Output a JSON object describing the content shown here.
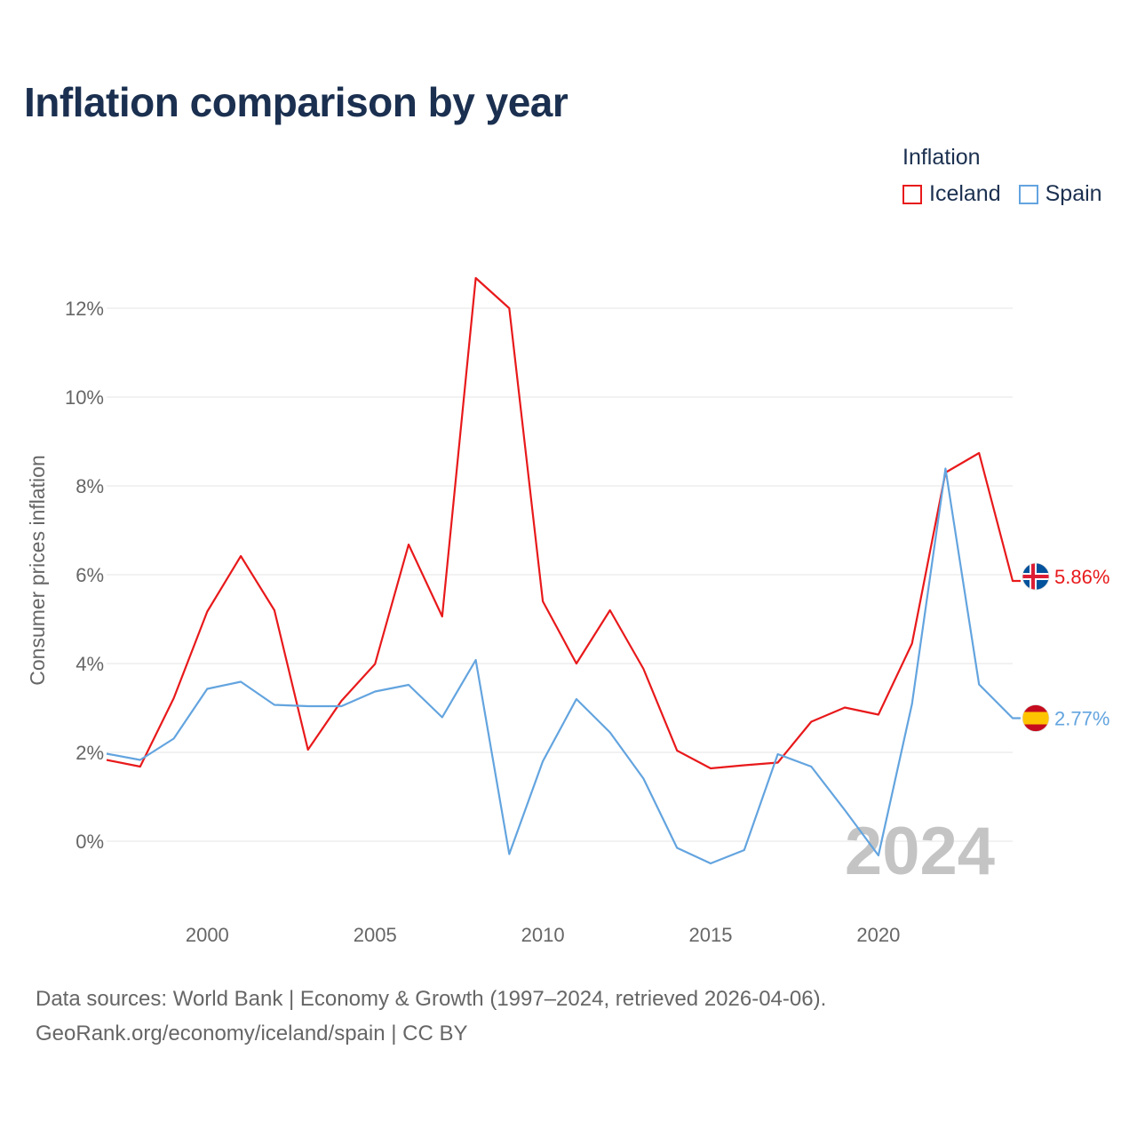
{
  "title": "Inflation comparison by year",
  "legend": {
    "title": "Inflation",
    "items": [
      {
        "name": "Iceland",
        "color": "#e8191b"
      },
      {
        "name": "Spain",
        "color": "#63a4df"
      }
    ]
  },
  "chart_data": {
    "type": "line",
    "title": "Inflation comparison by year",
    "xlabel": "",
    "ylabel": "Consumer prices inflation",
    "x": [
      1997,
      1998,
      1999,
      2000,
      2001,
      2002,
      2003,
      2004,
      2005,
      2006,
      2007,
      2008,
      2009,
      2010,
      2011,
      2012,
      2013,
      2014,
      2015,
      2016,
      2017,
      2018,
      2019,
      2020,
      2021,
      2022,
      2023,
      2024
    ],
    "xlim": [
      1997,
      2024
    ],
    "ylim": [
      -2,
      13.5
    ],
    "yticks": [
      0,
      2,
      4,
      6,
      8,
      10,
      12
    ],
    "ytick_labels": [
      "0%",
      "2%",
      "4%",
      "6%",
      "8%",
      "10%",
      "12%"
    ],
    "xticks": [
      2000,
      2005,
      2010,
      2015,
      2020
    ],
    "xtick_labels": [
      "2000",
      "2005",
      "2010",
      "2015",
      "2020"
    ],
    "grid": true,
    "legend_position": "top-right",
    "current_year_label": "2024",
    "series": [
      {
        "name": "Iceland",
        "color": "#e8191b",
        "values": [
          1.83,
          1.68,
          3.22,
          5.17,
          6.42,
          5.2,
          2.06,
          3.16,
          3.99,
          6.68,
          5.06,
          12.68,
          12.0,
          5.4,
          4.0,
          5.2,
          3.88,
          2.04,
          1.64,
          1.71,
          1.77,
          2.69,
          3.01,
          2.85,
          4.45,
          8.3,
          8.74,
          5.86
        ],
        "end_label": "5.86%",
        "flag": "iceland-flag"
      },
      {
        "name": "Spain",
        "color": "#63a4df",
        "values": [
          1.97,
          1.83,
          2.31,
          3.43,
          3.59,
          3.07,
          3.04,
          3.04,
          3.37,
          3.52,
          2.79,
          4.08,
          -0.29,
          1.8,
          3.2,
          2.45,
          1.41,
          -0.15,
          -0.5,
          -0.2,
          1.96,
          1.68,
          0.7,
          -0.32,
          3.09,
          8.39,
          3.53,
          2.77
        ],
        "end_label": "2.77%",
        "flag": "spain-flag"
      }
    ]
  },
  "footer": {
    "line1": "Data sources: World Bank | Economy & Growth (1997–2024, retrieved 2026-04-06).",
    "line2": "GeoRank.org/economy/iceland/spain | CC BY"
  }
}
